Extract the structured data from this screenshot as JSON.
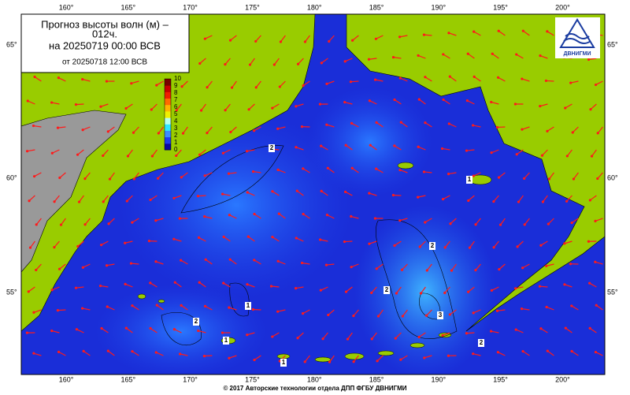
{
  "title": {
    "line1": "Прогноз высоты волн (м) –",
    "line2": "012ч.",
    "line3": "на 20250719 00:00 ВСВ",
    "line4": "от 20250718 12:00 ВСВ"
  },
  "colorbar": {
    "ticks": [
      0,
      1,
      2,
      3,
      4,
      5,
      6,
      7,
      8,
      9,
      10
    ],
    "colors": [
      "#0a0aa0",
      "#1e3cf0",
      "#3c8cff",
      "#2ee6ff",
      "#b4fff0",
      "#f0f000",
      "#ffb400",
      "#ff6a00",
      "#f01e00",
      "#c80000",
      "#780000"
    ]
  },
  "map": {
    "lon_labels": [
      "160°",
      "165°",
      "170°",
      "175°",
      "180°",
      "185°",
      "190°",
      "195°",
      "200°"
    ],
    "lat_labels": [
      "65°",
      "60°",
      "55°"
    ]
  },
  "contour_labels": [
    "2",
    "2",
    "2",
    "3",
    "1",
    "2",
    "1",
    "1",
    "2",
    "1"
  ],
  "logo": "ДВНИГМИ",
  "footer": "© 2017 Авторские технологии отдела ДПП ФГБУ ДВНИГМИ"
}
